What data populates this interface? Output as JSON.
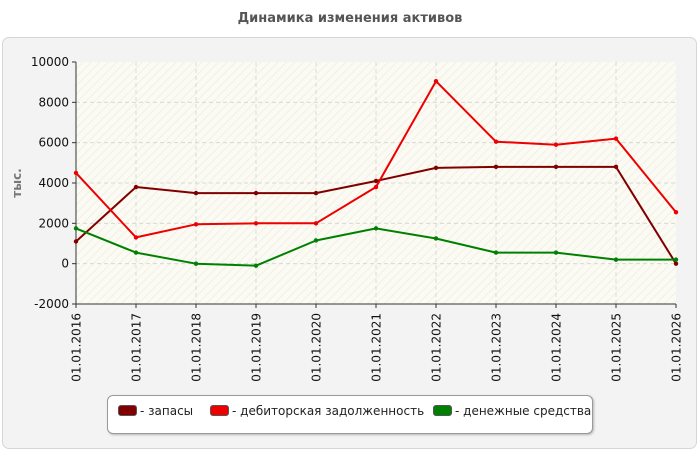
{
  "chart_data": {
    "type": "line",
    "title": "Динамика изменения активов",
    "ylabel": "тыс.",
    "xlabel": "",
    "ylim": [
      -2000,
      10000
    ],
    "yticks": [
      -2000,
      0,
      2000,
      4000,
      6000,
      8000,
      10000
    ],
    "categories": [
      "01.01.2016",
      "01.01.2017",
      "01.01.2018",
      "01.01.2019",
      "01.01.2020",
      "01.01.2021",
      "01.01.2022",
      "01.01.2023",
      "01.01.2024",
      "01.01.2025",
      "01.01.2026"
    ],
    "grid": true,
    "legend_position": "bottom",
    "series": [
      {
        "name": "- запасы",
        "color": "#800000",
        "values": [
          1100,
          3800,
          3500,
          3500,
          3500,
          4100,
          4750,
          4800,
          4800,
          4800,
          0
        ]
      },
      {
        "name": "- дебиторская задолженность",
        "color": "#ee0000",
        "values": [
          4500,
          1300,
          1950,
          2000,
          2000,
          3800,
          9050,
          6050,
          5900,
          6200,
          2550
        ]
      },
      {
        "name": "- денежные средства",
        "color": "#008000",
        "values": [
          1750,
          550,
          0,
          -100,
          1150,
          1750,
          1250,
          550,
          550,
          200,
          200
        ]
      }
    ]
  }
}
